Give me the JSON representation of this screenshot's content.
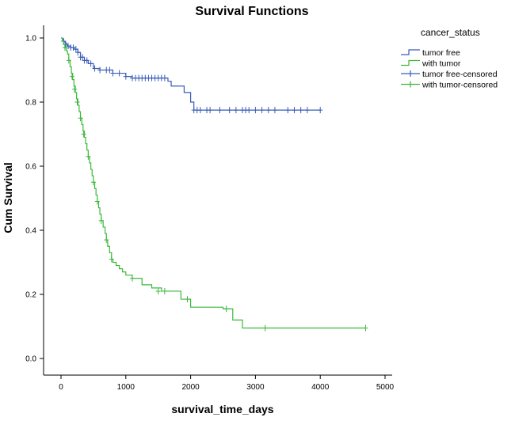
{
  "chart_data": {
    "type": "line",
    "title": "Survival Functions",
    "xlabel": "survival_time_days",
    "ylabel": "Cum Survival",
    "xlim": [
      0,
      5000
    ],
    "ylim": [
      0.0,
      1.0
    ],
    "xticks": [
      0,
      1000,
      2000,
      3000,
      4000,
      5000
    ],
    "yticks": [
      0.0,
      0.2,
      0.4,
      0.6,
      0.8,
      1.0
    ],
    "xtick_labels": [
      "0",
      "1000",
      "2000",
      "3000",
      "4000",
      "5000"
    ],
    "ytick_labels": [
      "0.0",
      "0.2",
      "0.4",
      "0.6",
      "0.8",
      "1.0"
    ],
    "grid": false,
    "legend": {
      "title": "cancer_status",
      "position": "top-right",
      "entries": [
        "tumor free",
        "with tumor",
        "tumor free-censored",
        "with tumor-censored"
      ]
    },
    "series": [
      {
        "name": "tumor free",
        "color": "#3a5cb8",
        "x": [
          0,
          20,
          40,
          60,
          80,
          100,
          150,
          200,
          260,
          300,
          360,
          420,
          500,
          600,
          800,
          1000,
          1100,
          1200,
          1300,
          1650,
          1700,
          1900,
          2000,
          2050,
          4000
        ],
        "y": [
          1.0,
          0.995,
          0.99,
          0.985,
          0.98,
          0.975,
          0.97,
          0.965,
          0.955,
          0.94,
          0.93,
          0.92,
          0.905,
          0.9,
          0.89,
          0.88,
          0.875,
          0.875,
          0.875,
          0.865,
          0.85,
          0.83,
          0.8,
          0.775,
          0.775
        ],
        "censored": {
          "x": [
            40,
            70,
            110,
            150,
            190,
            230,
            260,
            300,
            330,
            360,
            400,
            460,
            520,
            600,
            700,
            750,
            800,
            900,
            1000,
            1100,
            1150,
            1200,
            1250,
            1300,
            1350,
            1400,
            1450,
            1500,
            1550,
            1600,
            2050,
            2100,
            2150,
            2250,
            2300,
            2450,
            2600,
            2700,
            2800,
            2850,
            2900,
            3000,
            3100,
            3200,
            3300,
            3500,
            3600,
            3700,
            3800,
            4000
          ],
          "y": [
            0.99,
            0.98,
            0.975,
            0.97,
            0.97,
            0.965,
            0.955,
            0.94,
            0.94,
            0.93,
            0.93,
            0.92,
            0.905,
            0.9,
            0.9,
            0.9,
            0.89,
            0.89,
            0.88,
            0.875,
            0.875,
            0.875,
            0.875,
            0.875,
            0.875,
            0.875,
            0.875,
            0.875,
            0.875,
            0.875,
            0.775,
            0.775,
            0.775,
            0.775,
            0.775,
            0.775,
            0.775,
            0.775,
            0.775,
            0.775,
            0.775,
            0.775,
            0.775,
            0.775,
            0.775,
            0.775,
            0.775,
            0.775,
            0.775,
            0.775
          ]
        }
      },
      {
        "name": "with tumor",
        "color": "#3cb83c",
        "x": [
          0,
          20,
          40,
          60,
          80,
          100,
          120,
          140,
          160,
          180,
          200,
          220,
          240,
          260,
          280,
          300,
          320,
          340,
          360,
          380,
          400,
          420,
          440,
          460,
          480,
          500,
          520,
          540,
          560,
          580,
          600,
          620,
          650,
          680,
          700,
          720,
          750,
          780,
          800,
          850,
          900,
          950,
          1000,
          1100,
          1250,
          1400,
          1550,
          1850,
          2000,
          2500,
          2650,
          2800,
          4700
        ],
        "y": [
          1.0,
          0.99,
          0.98,
          0.97,
          0.96,
          0.95,
          0.93,
          0.91,
          0.89,
          0.87,
          0.85,
          0.83,
          0.81,
          0.79,
          0.77,
          0.75,
          0.73,
          0.71,
          0.69,
          0.67,
          0.65,
          0.63,
          0.61,
          0.59,
          0.57,
          0.55,
          0.53,
          0.51,
          0.49,
          0.47,
          0.45,
          0.43,
          0.41,
          0.39,
          0.37,
          0.35,
          0.33,
          0.31,
          0.3,
          0.29,
          0.28,
          0.27,
          0.26,
          0.25,
          0.23,
          0.22,
          0.21,
          0.185,
          0.16,
          0.155,
          0.12,
          0.095,
          0.095
        ],
        "censored": {
          "x": [
            60,
            120,
            170,
            210,
            250,
            300,
            350,
            420,
            500,
            560,
            620,
            700,
            780,
            1100,
            1500,
            1600,
            1950,
            2550,
            3150,
            4700
          ],
          "y": [
            0.97,
            0.93,
            0.88,
            0.84,
            0.8,
            0.75,
            0.7,
            0.63,
            0.55,
            0.49,
            0.43,
            0.37,
            0.31,
            0.25,
            0.21,
            0.21,
            0.185,
            0.155,
            0.095,
            0.095
          ]
        }
      }
    ]
  }
}
